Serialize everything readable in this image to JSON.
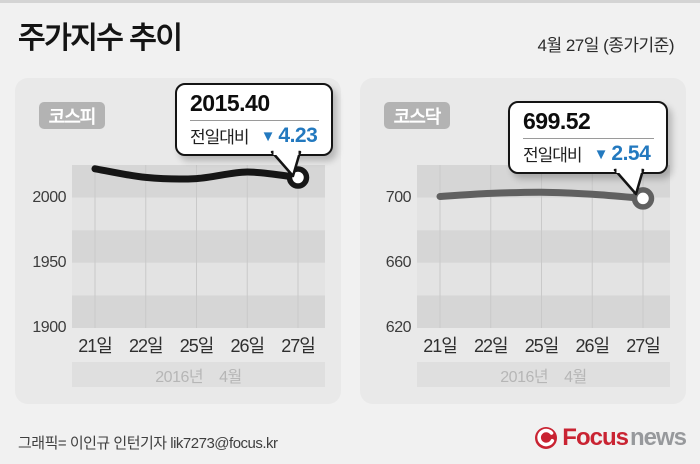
{
  "header": {
    "title": "주가지수 추이",
    "date_note": "4월 27일 (종가기준)"
  },
  "chart_data": [
    {
      "type": "line",
      "title": "코스피",
      "x": [
        "21일",
        "22일",
        "25일",
        "26일",
        "27일"
      ],
      "values": [
        2022.1,
        2015.5,
        2014.6,
        2019.6,
        2015.4
      ],
      "yticks": [
        2000,
        1950,
        1900
      ],
      "ylim": [
        1900,
        2025
      ],
      "x_group": {
        "year": "2016년",
        "month": "4월"
      },
      "line_color": "#161616",
      "annotation": {
        "value": "2015.40",
        "label": "전일대비",
        "direction": "down",
        "change": "4.23"
      },
      "legend": "none",
      "grid": "horizontal-bands-and-vertical-lines"
    },
    {
      "type": "line",
      "title": "코스닥",
      "x": [
        "21일",
        "22일",
        "25일",
        "26일",
        "27일"
      ],
      "values": [
        700.7,
        702.6,
        703.3,
        702.1,
        699.52
      ],
      "yticks": [
        700,
        660,
        620
      ],
      "ylim": [
        620,
        720
      ],
      "x_group": {
        "year": "2016년",
        "month": "4월"
      },
      "line_color": "#606060",
      "annotation": {
        "value": "699.52",
        "label": "전일대비",
        "direction": "down",
        "change": "2.54"
      },
      "legend": "none",
      "grid": "horizontal-bands-and-vertical-lines"
    }
  ],
  "footer": {
    "credit": "그래픽= 이인규 인턴기자 lik7273@focus.kr",
    "logo": {
      "brand": "Focus",
      "suffix": "news"
    }
  },
  "colors": {
    "accent_blue": "#2379bf",
    "logo_red": "#c92332",
    "logo_gray": "#97999c",
    "band_dark": "#d6d6d6",
    "band_light": "#e3e3e3",
    "grid_line": "#c9c9c9"
  }
}
